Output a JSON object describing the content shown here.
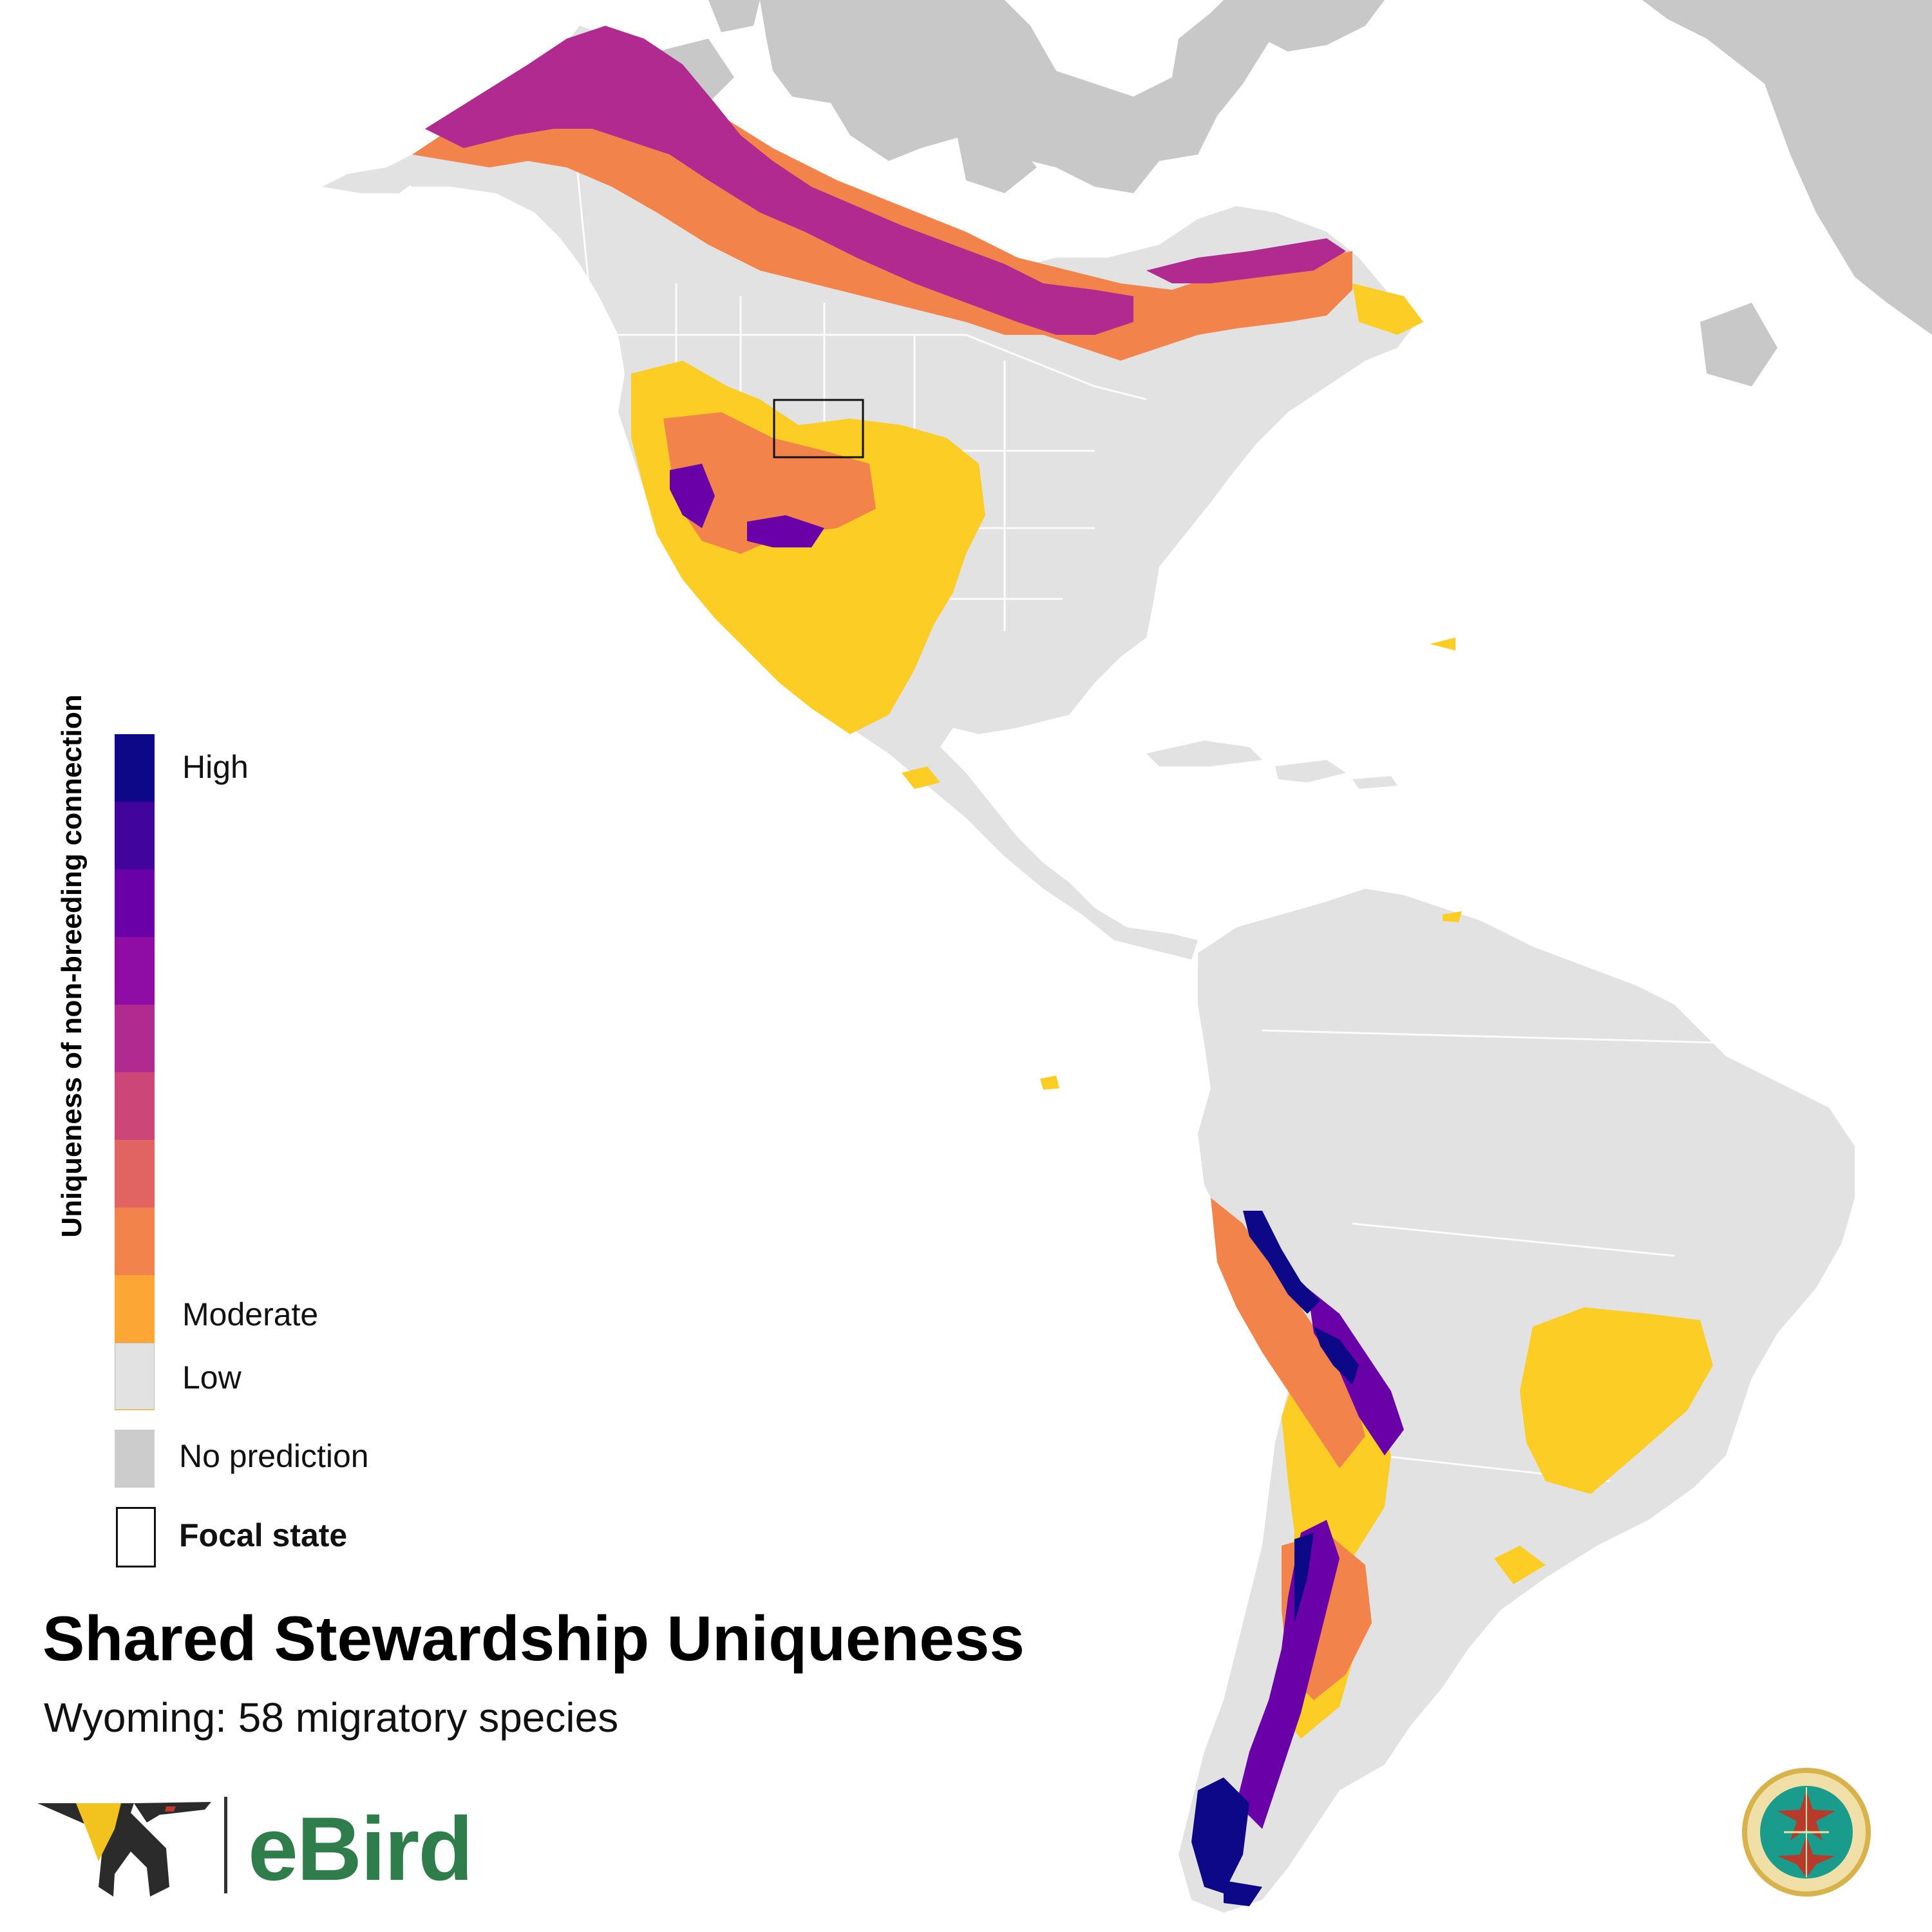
{
  "title": "Shared Stewardship Uniqueness",
  "subtitle": "Wyoming: 58 migratory species",
  "legend": {
    "axis_title": "Uniqueness of non-breeding connection",
    "high_label": "High",
    "moderate_label": "Moderate",
    "low_label": "Low",
    "no_prediction_label": "No prediction",
    "focal_state_label": "Focal state",
    "scale_colors": [
      "#0d0887",
      "#41049d",
      "#6a00a8",
      "#8f0da4",
      "#b12a90",
      "#cc4778",
      "#e16462",
      "#f2844b",
      "#fca636",
      "#fccd25"
    ],
    "low_color": "#e2e2e2",
    "no_prediction_color": "#cccccc"
  },
  "map": {
    "land_color": "#e2e2e2",
    "no_prediction_color": "#c8c8c8",
    "water_color": "#ffffff",
    "focal_state": "Wyoming"
  },
  "logos": {
    "ebird": {
      "wordmark": "eBird",
      "icon": "ebird-bird-icon"
    },
    "partners_in_flight": {
      "icon": "partners-in-flight-seal"
    }
  }
}
